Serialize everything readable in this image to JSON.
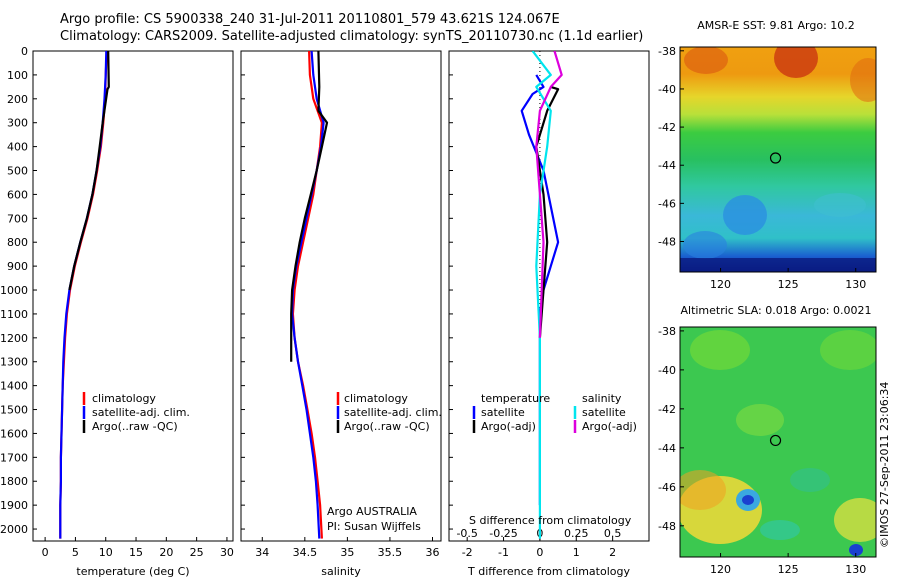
{
  "title_line1": "Argo profile: CS 5900338_240 31-Jul-2011 20110801_579 43.621S 124.067E",
  "title_line2": "Climatology: CARS2009. Satellite-adjusted climatology: synTS_20110730.nc (1.1d earlier)",
  "stamp": "©IMOS 27-Sep-2011 23:06:34",
  "chart_data": [
    {
      "type": "line",
      "name": "temperature",
      "xlabel": "temperature (deg C)",
      "xlim": [
        -2,
        31
      ],
      "xticks": [
        0,
        5,
        10,
        15,
        20,
        25,
        30
      ],
      "ylim": [
        0,
        2050
      ],
      "yticks": [
        0,
        100,
        200,
        300,
        400,
        500,
        600,
        700,
        800,
        900,
        1000,
        1100,
        1200,
        1300,
        1400,
        1500,
        1600,
        1700,
        1800,
        1900,
        2000
      ],
      "legend": [
        "climatology",
        "satellite-adj. clim.",
        "Argo(..raw -QC)"
      ],
      "series": [
        {
          "name": "climatology",
          "color": "#ff0000",
          "x": [
            10.2,
            10.0,
            9.9,
            9.6,
            9.2,
            8.6,
            7.9,
            7.0,
            5.9,
            4.9,
            4.1,
            3.6,
            3.3,
            3.1,
            2.9,
            2.8,
            2.7,
            2.6,
            2.6,
            2.5,
            2.5
          ],
          "y": [
            0,
            100,
            200,
            300,
            400,
            500,
            600,
            700,
            800,
            900,
            1000,
            1100,
            1200,
            1300,
            1400,
            1500,
            1600,
            1700,
            1800,
            1900,
            2040
          ]
        },
        {
          "name": "satellite-adj. clim.",
          "color": "#0000ff",
          "x": [
            10.1,
            10.0,
            9.8,
            9.5,
            9.1,
            8.5,
            7.8,
            6.9,
            5.8,
            4.8,
            4.0,
            3.5,
            3.2,
            3.0,
            2.9,
            2.8,
            2.7,
            2.6,
            2.6,
            2.5,
            2.5
          ],
          "y": [
            0,
            100,
            200,
            300,
            400,
            500,
            600,
            700,
            800,
            900,
            1000,
            1100,
            1200,
            1300,
            1400,
            1500,
            1600,
            1700,
            1800,
            1900,
            2040
          ]
        },
        {
          "name": "Argo(..raw -QC)",
          "color": "#000000",
          "x": [
            10.4,
            10.5,
            10.3,
            9.5,
            9.0,
            8.5,
            7.8,
            6.9,
            5.8,
            4.8,
            4.0
          ],
          "y": [
            0,
            150,
            160,
            300,
            400,
            500,
            600,
            700,
            800,
            900,
            1000
          ]
        }
      ]
    },
    {
      "type": "line",
      "name": "salinity",
      "xlabel": "salinity",
      "xlim": [
        33.75,
        36.1
      ],
      "xticks": [
        34,
        34.5,
        35,
        35.5,
        36
      ],
      "ylim": [
        0,
        2050
      ],
      "legend": [
        "climatology",
        "satellite-adj. clim.",
        "Argo(..raw -QC)"
      ],
      "annotation": [
        "Argo AUSTRALIA",
        "PI: Susan Wijffels"
      ],
      "series": [
        {
          "name": "climatology",
          "color": "#ff0000",
          "x": [
            34.55,
            34.56,
            34.6,
            34.7,
            34.68,
            34.64,
            34.6,
            34.54,
            34.48,
            34.42,
            34.38,
            34.36,
            34.38,
            34.42,
            34.48,
            34.53,
            34.58,
            34.62,
            34.65,
            34.68,
            34.7
          ],
          "y": [
            0,
            100,
            200,
            300,
            400,
            500,
            600,
            700,
            800,
            900,
            1000,
            1100,
            1200,
            1300,
            1400,
            1500,
            1600,
            1700,
            1800,
            1900,
            2040
          ]
        },
        {
          "name": "satellite-adj. clim.",
          "color": "#0000ff",
          "x": [
            34.58,
            34.6,
            34.64,
            34.72,
            34.69,
            34.64,
            34.58,
            34.52,
            34.46,
            34.4,
            34.36,
            34.35,
            34.38,
            34.42,
            34.47,
            34.52,
            34.56,
            34.6,
            34.63,
            34.65,
            34.67
          ],
          "y": [
            0,
            100,
            200,
            300,
            400,
            500,
            600,
            700,
            800,
            900,
            1000,
            1100,
            1200,
            1300,
            1400,
            1500,
            1600,
            1700,
            1800,
            1900,
            2040
          ]
        },
        {
          "name": "Argo(..raw -QC)",
          "color": "#000000",
          "x": [
            34.66,
            34.67,
            34.66,
            34.76,
            34.7,
            34.64,
            34.57,
            34.5,
            34.44,
            34.39,
            34.35,
            34.34,
            34.34
          ],
          "y": [
            0,
            150,
            250,
            300,
            400,
            500,
            600,
            700,
            800,
            900,
            1000,
            1100,
            1300
          ]
        }
      ]
    },
    {
      "type": "line",
      "name": "differences",
      "xlabel": "T difference from climatology",
      "xlabel_top": "S difference from climatology",
      "xlim": [
        -2.5,
        3.0
      ],
      "xticks": [
        -2,
        -1,
        0,
        1,
        2
      ],
      "top_ticks": [
        "-0.5",
        "-0.25",
        "0",
        "0.25",
        "0.5"
      ],
      "top_tick_positions": [
        -2,
        -1,
        0,
        1,
        2
      ],
      "ylim": [
        0,
        2050
      ],
      "legend_left_title": "temperature",
      "legend_right_title": "salinity",
      "legend": [
        "satellite",
        "Argo(-adj)",
        "satellite",
        "Argo(-adj)"
      ],
      "series": [
        {
          "name": "T satellite",
          "color": "#0000ff",
          "x": [
            -0.1,
            0.1,
            -0.2,
            -0.5,
            -0.3,
            0.1,
            0.3,
            0.5,
            0.3,
            0.1,
            0.0,
            0.0,
            0.0,
            0.0,
            0.0,
            0.0,
            0.0,
            0.0,
            0.0
          ],
          "y": [
            100,
            150,
            180,
            250,
            350,
            500,
            650,
            800,
            900,
            1000,
            1100,
            1200,
            1300,
            1400,
            1500,
            1600,
            1700,
            1800,
            1900
          ]
        },
        {
          "name": "T Argo(-adj)",
          "color": "#000000",
          "x": [
            0.3,
            0.5,
            0.2,
            -0.1,
            0.1,
            0.2,
            0.1,
            0.0
          ],
          "y": [
            150,
            160,
            250,
            400,
            600,
            800,
            1000,
            1200
          ]
        },
        {
          "name": "S satellite",
          "color": "#00e5ee",
          "x": [
            -0.2,
            0.3,
            -0.1,
            0.1,
            0.3,
            0.2,
            0.0,
            -0.1,
            0.0,
            0.0,
            0.0,
            0.0,
            0.0
          ],
          "y": [
            0,
            100,
            150,
            200,
            250,
            400,
            600,
            900,
            1200,
            1400,
            1600,
            1800,
            2040
          ]
        },
        {
          "name": "S Argo(-adj)",
          "color": "#dd00dd",
          "x": [
            0.4,
            0.6,
            0.3,
            0.0,
            -0.1,
            0.0,
            0.1,
            0.05,
            0.0
          ],
          "y": [
            0,
            100,
            150,
            250,
            400,
            600,
            800,
            1000,
            1200
          ]
        }
      ]
    },
    {
      "type": "heatmap",
      "name": "sst",
      "title": "AMSR-E SST: 9.81 Argo: 10.2",
      "xticks": [
        120,
        125,
        130
      ],
      "yticks": [
        -38,
        -40,
        -42,
        -44,
        -46,
        -48
      ],
      "xlim": [
        117,
        131.5
      ],
      "ylim": [
        -49.6,
        -37.8
      ],
      "marker": [
        124.067,
        -43.621
      ]
    },
    {
      "type": "heatmap",
      "name": "sla",
      "title": "Altimetric SLA: 0.018 Argo: 0.0021",
      "xticks": [
        120,
        125,
        130
      ],
      "yticks": [
        -38,
        -40,
        -42,
        -44,
        -46,
        -48
      ],
      "xlim": [
        117,
        131.5
      ],
      "ylim": [
        -49.6,
        -37.8
      ],
      "marker": [
        124.067,
        -43.621
      ]
    }
  ]
}
